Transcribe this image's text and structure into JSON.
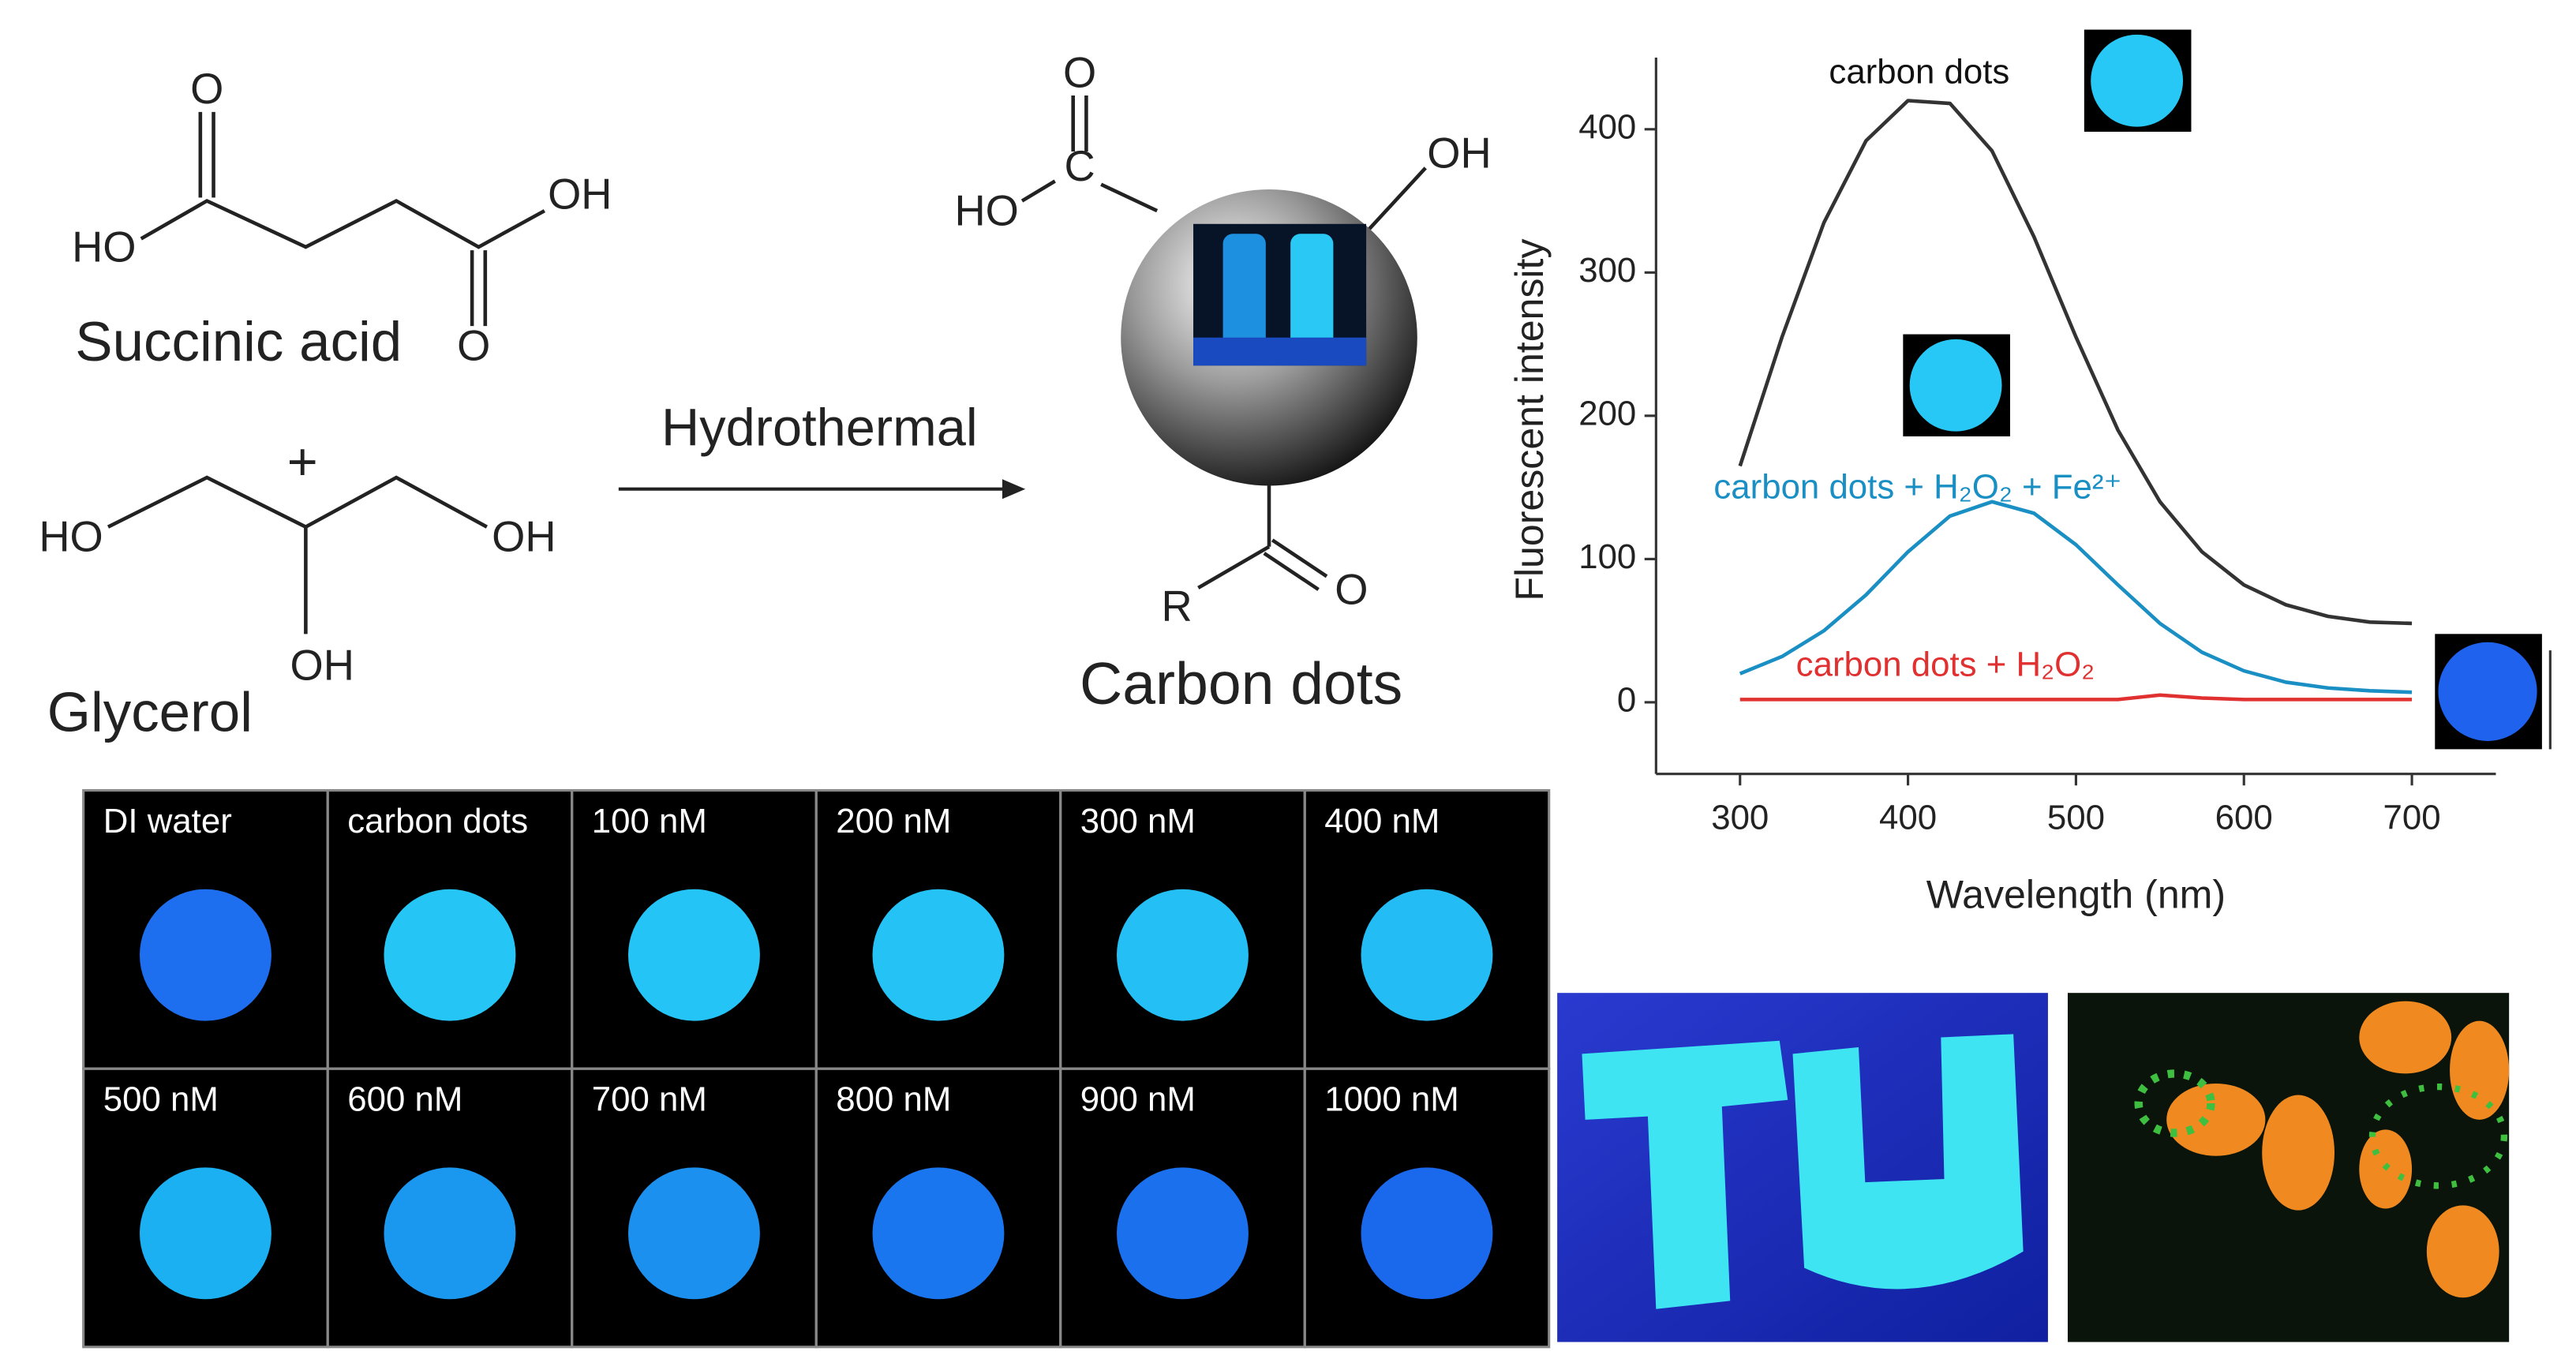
{
  "scheme": {
    "succinic_acid": {
      "name": "Succinic acid",
      "atoms": [
        "O",
        "HO",
        "OH",
        "O"
      ]
    },
    "plus": "+",
    "glycerol": {
      "name": "Glycerol",
      "atoms": [
        "HO",
        "OH",
        "OH"
      ]
    },
    "arrow_label": "Hydrothermal",
    "carbon_dots": {
      "name": "Carbon  dots",
      "atoms": [
        "O",
        "HO",
        "C",
        "OH",
        "R",
        "O"
      ]
    }
  },
  "chart_data": {
    "type": "line",
    "x_label": "Wavelength (nm)",
    "y_label": "Fluorescent intensity",
    "x": [
      300,
      325,
      350,
      375,
      400,
      425,
      450,
      475,
      500,
      525,
      550,
      575,
      600,
      625,
      650,
      675,
      700
    ],
    "series": [
      {
        "name": "carbon dots",
        "color": "#333333",
        "values": [
          165,
          255,
          335,
          392,
          420,
          418,
          385,
          325,
          255,
          190,
          140,
          105,
          82,
          68,
          60,
          56,
          55
        ]
      },
      {
        "name": "carbon dots + H₂O₂ + Fe²⁺",
        "color": "#1a8fc4",
        "values": [
          20,
          32,
          50,
          75,
          105,
          130,
          140,
          132,
          110,
          82,
          55,
          35,
          22,
          14,
          10,
          8,
          7
        ]
      },
      {
        "name": "carbon dots + H₂O₂",
        "color": "#e03030",
        "values": [
          2,
          2,
          2,
          2,
          2,
          2,
          2,
          2,
          2,
          2,
          5,
          3,
          2,
          2,
          2,
          2,
          2
        ]
      }
    ],
    "xlim": [
      250,
      750
    ],
    "xticks": [
      300,
      400,
      500,
      600,
      700
    ],
    "ylim": [
      -50,
      450
    ],
    "yticks": [
      0,
      100,
      200,
      300,
      400
    ]
  },
  "photo_grid": {
    "cells": [
      {
        "label": "DI water",
        "color": "#1e6ff0"
      },
      {
        "label": "carbon dots",
        "color": "#25c6f6"
      },
      {
        "label": "100 nM",
        "color": "#25c4f6"
      },
      {
        "label": "200 nM",
        "color": "#25c2f6"
      },
      {
        "label": "300 nM",
        "color": "#24c0f5"
      },
      {
        "label": "400 nM",
        "color": "#23bcf4"
      },
      {
        "label": "500 nM",
        "color": "#1ab0f2"
      },
      {
        "label": "600 nM",
        "color": "#1a98f0"
      },
      {
        "label": "700 nM",
        "color": "#1b90ef"
      },
      {
        "label": "800 nM",
        "color": "#1a76ee"
      },
      {
        "label": "900 nM",
        "color": "#1b70ee"
      },
      {
        "label": "1000 nM",
        "color": "#1a68ec"
      }
    ]
  }
}
